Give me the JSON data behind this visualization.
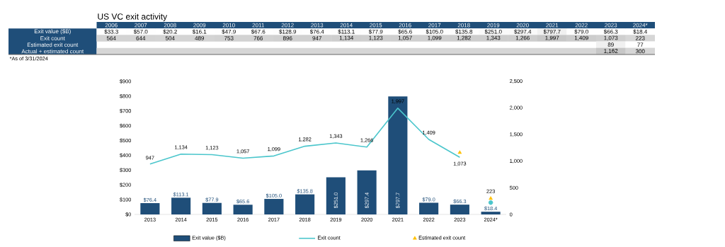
{
  "chart_data": [
    {
      "type": "heatmap",
      "title": "US VC exit activity",
      "annotations": [
        "*As of 3/31/2024"
      ],
      "categories": [
        "2006",
        "2007",
        "2008",
        "2009",
        "2010",
        "2011",
        "2012",
        "2013",
        "2014",
        "2015",
        "2016",
        "2017",
        "2018",
        "2019",
        "2020",
        "2021",
        "2022",
        "2023",
        "2024*"
      ],
      "y_categories": [
        "Exit value ($B)",
        "Exit count",
        "Estimated exit count",
        "Actual + estimated count"
      ],
      "cells": [
        [
          33.3,
          57.0,
          20.2,
          16.1,
          47.9,
          67.6,
          128.9,
          76.4,
          113.1,
          77.9,
          65.6,
          105.0,
          135.8,
          251.0,
          297.4,
          797.7,
          79.0,
          66.3,
          18.4
        ],
        [
          564,
          644,
          504,
          489,
          753,
          766,
          896,
          947,
          1134,
          1123,
          1057,
          1099,
          1282,
          1343,
          1266,
          1997,
          1409,
          1073,
          223
        ],
        [
          null,
          null,
          null,
          null,
          null,
          null,
          null,
          null,
          null,
          null,
          null,
          null,
          null,
          null,
          null,
          null,
          null,
          89,
          77
        ],
        [
          null,
          null,
          null,
          null,
          null,
          null,
          null,
          null,
          null,
          null,
          null,
          null,
          null,
          null,
          null,
          null,
          null,
          1162,
          300
        ]
      ],
      "cell_labels": [
        [
          "$33.3",
          "$57.0",
          "$20.2",
          "$16.1",
          "$47.9",
          "$67.6",
          "$128.9",
          "$76.4",
          "$113.1",
          "$77.9",
          "$65.6",
          "$105.0",
          "$135.8",
          "$251.0",
          "$297.4",
          "$797.7",
          "$79.0",
          "$66.3",
          "$18.4"
        ],
        [
          "564",
          "644",
          "504",
          "489",
          "753",
          "766",
          "896",
          "947",
          "1,134",
          "1,123",
          "1,057",
          "1,099",
          "1,282",
          "1,343",
          "1,266",
          "1,997",
          "1,409",
          "1,073",
          "223"
        ],
        [
          null,
          null,
          null,
          null,
          null,
          null,
          null,
          null,
          null,
          null,
          null,
          null,
          null,
          null,
          null,
          null,
          null,
          "89",
          "77"
        ],
        [
          null,
          null,
          null,
          null,
          null,
          null,
          null,
          null,
          null,
          null,
          null,
          null,
          null,
          null,
          null,
          null,
          null,
          "1,162",
          "300"
        ]
      ]
    },
    {
      "type": "bar",
      "categories": [
        "2013",
        "2014",
        "2015",
        "2016",
        "2017",
        "2018",
        "2019",
        "2020",
        "2021",
        "2022",
        "2023",
        "2024*"
      ],
      "series": [
        {
          "name": "Exit value ($B)",
          "type": "bar",
          "color": "#1f4e79",
          "values": [
            76.4,
            113.1,
            77.9,
            65.6,
            105.0,
            135.8,
            251.0,
            297.4,
            797.7,
            79.0,
            66.3,
            18.4
          ],
          "value_labels": [
            "$76.4",
            "$113.1",
            "$77.9",
            "$65.6",
            "$105.0",
            "$135.8",
            "$251.0",
            "$297.4",
            "$797.7",
            "$79.0",
            "$66.3",
            "$18.4"
          ]
        },
        {
          "name": "Exit count",
          "type": "line",
          "axis": "y2",
          "color": "#4bc6cc",
          "values": [
            947,
            1134,
            1123,
            1057,
            1099,
            1282,
            1343,
            1266,
            1997,
            1409,
            1073,
            null
          ],
          "value_labels": [
            "947",
            "1,134",
            "1,123",
            "1,057",
            "1,099",
            "1,282",
            "1,343",
            "1,266",
            "1,997",
            "1,409",
            "1,073",
            null
          ]
        },
        {
          "type": "scatter",
          "axis": "y2",
          "marker": "circle",
          "color": "#4bc6cc",
          "values": [
            null,
            null,
            null,
            null,
            null,
            null,
            null,
            null,
            null,
            null,
            null,
            223
          ],
          "value_labels": [
            null,
            null,
            null,
            null,
            null,
            null,
            null,
            null,
            null,
            null,
            null,
            "223"
          ]
        },
        {
          "name": "Estimated exit count",
          "type": "scatter",
          "axis": "y2",
          "marker": "triangle",
          "color": "#ffc000",
          "values": [
            null,
            null,
            null,
            null,
            null,
            null,
            null,
            null,
            null,
            null,
            1162,
            300
          ]
        }
      ],
      "ylim": [
        0,
        900
      ],
      "yticks": [
        {
          "value": 0,
          "label": "$0"
        },
        {
          "value": 100,
          "label": "$100"
        },
        {
          "value": 200,
          "label": "$200"
        },
        {
          "value": 300,
          "label": "$300"
        },
        {
          "value": 400,
          "label": "$400"
        },
        {
          "value": 500,
          "label": "$500"
        },
        {
          "value": 600,
          "label": "$600"
        },
        {
          "value": 700,
          "label": "$700"
        },
        {
          "value": 800,
          "label": "$800"
        },
        {
          "value": 900,
          "label": "$900"
        }
      ],
      "y2lim": [
        0,
        2500
      ],
      "y2ticks": [
        0,
        500,
        {
          "value": 1000,
          "label": "1,000"
        },
        {
          "value": 1500,
          "label": "1,500"
        },
        {
          "value": 2000,
          "label": "2,000"
        },
        {
          "value": 2500,
          "label": "2,500"
        }
      ],
      "legend": "bottom"
    }
  ]
}
